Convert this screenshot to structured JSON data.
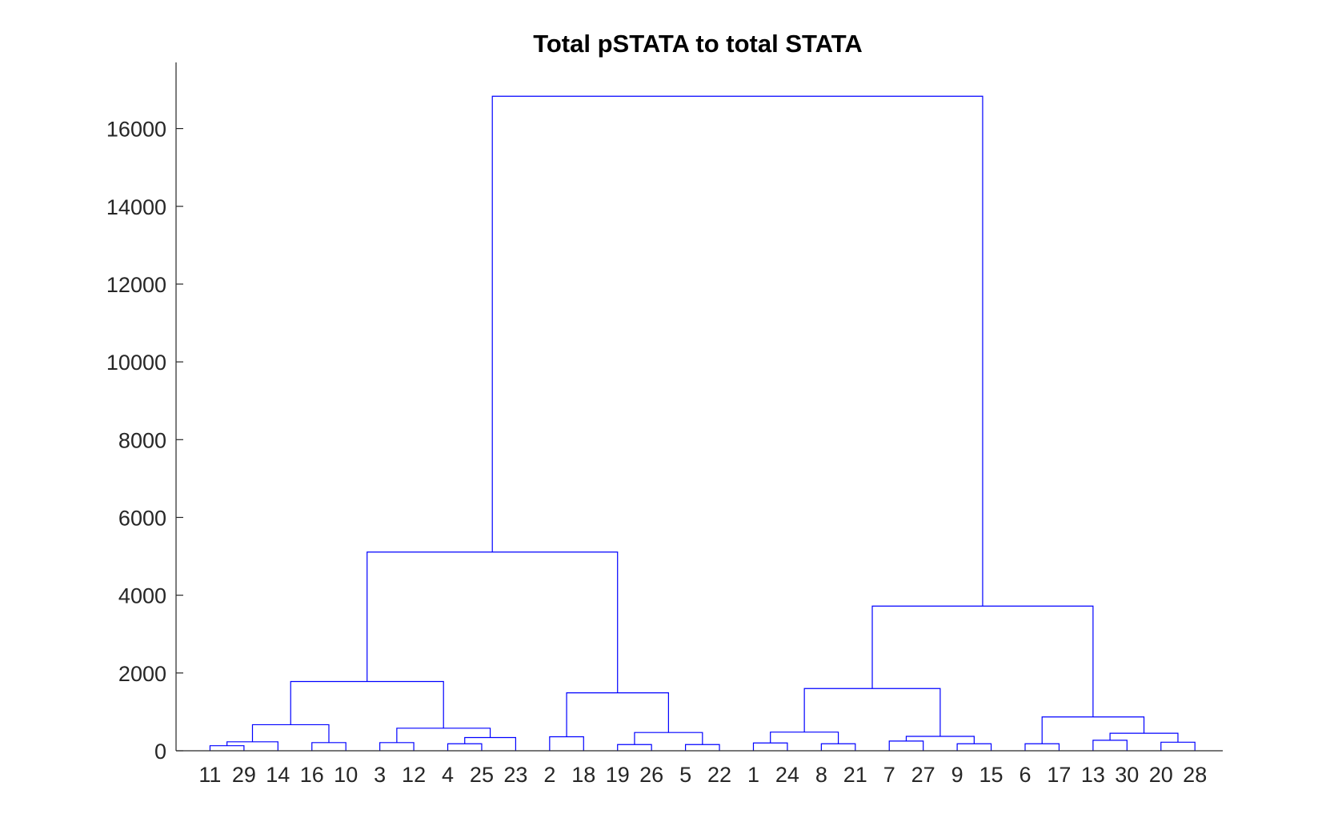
{
  "chart_data": {
    "type": "dendrogram",
    "title": "Total pSTATA to total STATA",
    "xlabel": "",
    "ylabel": "",
    "ylim": [
      0,
      17700
    ],
    "yticks": [
      0,
      2000,
      4000,
      6000,
      8000,
      10000,
      12000,
      14000,
      16000
    ],
    "leaf_order": [
      "11",
      "29",
      "14",
      "16",
      "10",
      "3",
      "12",
      "4",
      "25",
      "23",
      "2",
      "18",
      "19",
      "26",
      "5",
      "22",
      "1",
      "24",
      "8",
      "21",
      "7",
      "27",
      "9",
      "15",
      "6",
      "17",
      "13",
      "30",
      "20",
      "28"
    ],
    "line_color": "#0000ff",
    "grid": false,
    "merges": [
      {
        "left": "11",
        "right": "29",
        "height": 130
      },
      {
        "left": "11+29",
        "right": "14",
        "height": 230
      },
      {
        "left": "16",
        "right": "10",
        "height": 210
      },
      {
        "left": "11+29+14",
        "right": "16+10",
        "height": 670
      },
      {
        "left": "3",
        "right": "12",
        "height": 210
      },
      {
        "left": "4",
        "right": "25",
        "height": 180
      },
      {
        "left": "4+25",
        "right": "23",
        "height": 340
      },
      {
        "left": "3+12",
        "right": "4+25+23",
        "height": 580
      },
      {
        "left": "11..10",
        "right": "3..23",
        "height": 1780
      },
      {
        "left": "2",
        "right": "18",
        "height": 360
      },
      {
        "left": "19",
        "right": "26",
        "height": 160
      },
      {
        "left": "5",
        "right": "22",
        "height": 160
      },
      {
        "left": "19+26",
        "right": "5+22",
        "height": 470
      },
      {
        "left": "2+18",
        "right": "19..22",
        "height": 1490
      },
      {
        "left": "11..23",
        "right": "2..22",
        "height": 5110
      },
      {
        "left": "1",
        "right": "24",
        "height": 200
      },
      {
        "left": "8",
        "right": "21",
        "height": 180
      },
      {
        "left": "1+24",
        "right": "8+21",
        "height": 480
      },
      {
        "left": "7",
        "right": "27",
        "height": 250
      },
      {
        "left": "9",
        "right": "15",
        "height": 180
      },
      {
        "left": "7+27",
        "right": "9+15",
        "height": 370
      },
      {
        "left": "1..21",
        "right": "7..15",
        "height": 1600
      },
      {
        "left": "6",
        "right": "17",
        "height": 180
      },
      {
        "left": "13",
        "right": "30",
        "height": 270
      },
      {
        "left": "20",
        "right": "28",
        "height": 220
      },
      {
        "left": "13+30",
        "right": "20+28",
        "height": 450
      },
      {
        "left": "6+17",
        "right": "13..28",
        "height": 870
      },
      {
        "left": "1..15",
        "right": "6..28",
        "height": 3720
      },
      {
        "left": "11..22",
        "right": "1..28",
        "height": 16830
      }
    ]
  }
}
